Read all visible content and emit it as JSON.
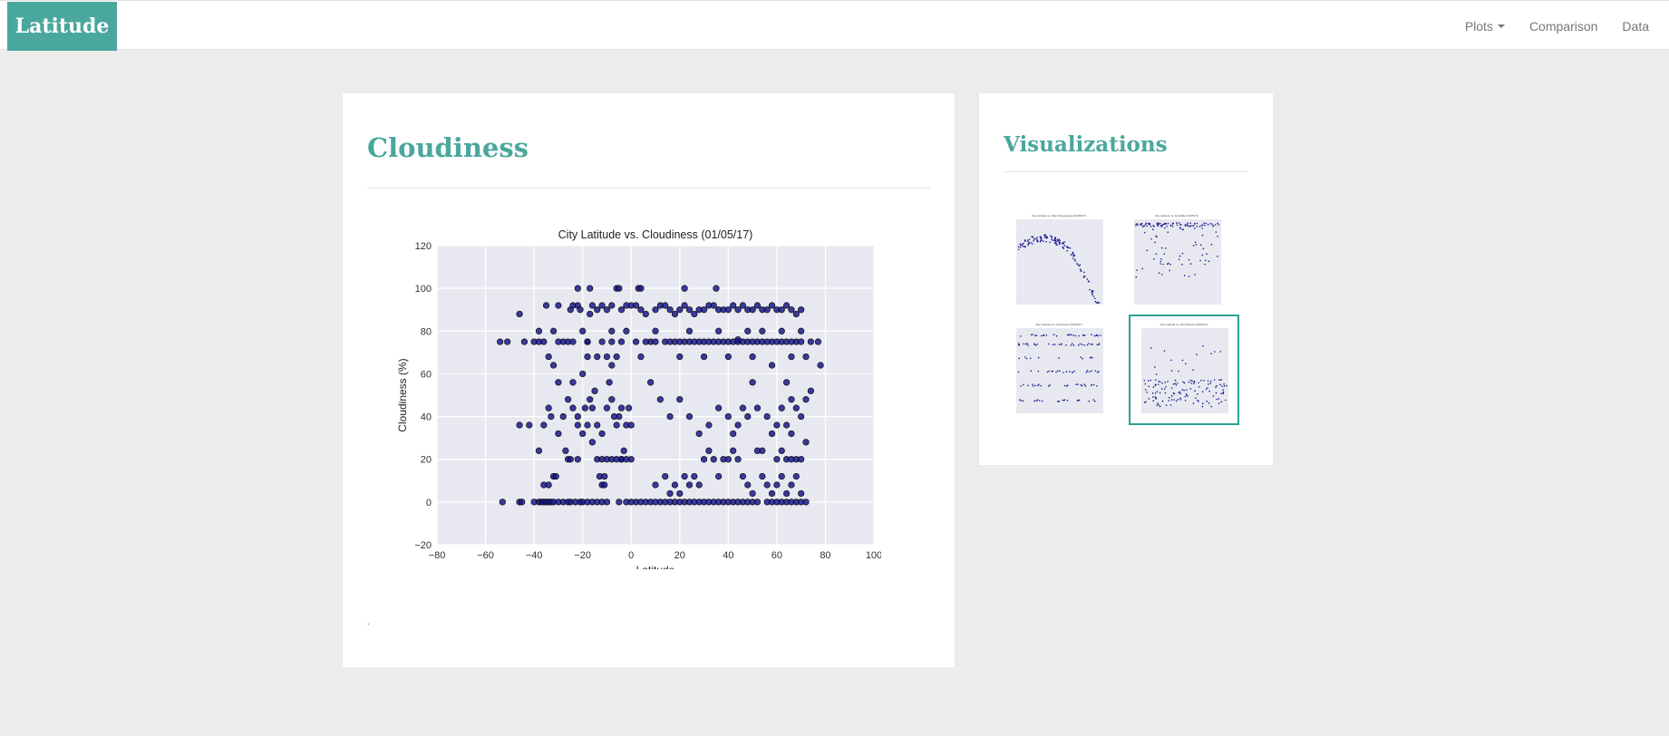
{
  "navbar": {
    "brand": "Latitude",
    "links": [
      {
        "label": "Plots",
        "dropdown": true
      },
      {
        "label": "Comparison",
        "dropdown": false
      },
      {
        "label": "Data",
        "dropdown": false
      }
    ]
  },
  "main": {
    "title": "Cloudiness",
    "footnote": "."
  },
  "sidebar": {
    "title": "Visualizations",
    "thumbnails": [
      {
        "name": "max-temperature",
        "title": "City Latitude vs. Max Temperature (01/05/17)",
        "active": false
      },
      {
        "name": "humidity",
        "title": "City Latitude vs. Humidity (01/05/17)",
        "active": false
      },
      {
        "name": "cloudiness",
        "title": "City Latitude vs. Cloudiness (01/05/17)",
        "active": false
      },
      {
        "name": "wind-speed",
        "title": "City Latitude vs. Wind Speed (01/05/17)",
        "active": true
      }
    ]
  },
  "colors": {
    "accent": "#4aa79e",
    "active_border": "#2f9f95",
    "plot_bg": "#e8e8f1",
    "point": "#1a1a8c"
  },
  "chart_data": {
    "type": "scatter",
    "title": "City Latitude vs. Cloudiness (01/05/17)",
    "xlabel": "Latitude",
    "ylabel": "Cloudiness (%)",
    "xlim": [
      -80,
      100
    ],
    "ylim": [
      -20,
      120
    ],
    "xticks": [
      -80,
      -60,
      -40,
      -20,
      0,
      20,
      40,
      60,
      80,
      100
    ],
    "yticks": [
      -20,
      0,
      20,
      40,
      60,
      80,
      100,
      120
    ],
    "xtick_labels": [
      "−80",
      "−60",
      "−40",
      "−20",
      "0",
      "20",
      "40",
      "60",
      "80",
      "100"
    ],
    "ytick_labels": [
      "−20",
      "0",
      "20",
      "40",
      "60",
      "80",
      "100",
      "120"
    ],
    "grid": true,
    "series": [
      {
        "points": [
          [
            -54,
            75
          ],
          [
            -51,
            75
          ],
          [
            -46,
            88
          ],
          [
            -44,
            75
          ],
          [
            -53,
            0
          ],
          [
            -46,
            0
          ],
          [
            -45,
            0
          ],
          [
            -40,
            0
          ],
          [
            -38,
            0
          ],
          [
            -37,
            0
          ],
          [
            -36,
            0
          ],
          [
            -35,
            0
          ],
          [
            -34,
            0
          ],
          [
            -33,
            0
          ],
          [
            -32,
            0
          ],
          [
            -30,
            0
          ],
          [
            -28,
            0
          ],
          [
            -26,
            0
          ],
          [
            -25,
            0
          ],
          [
            -23,
            0
          ],
          [
            -21,
            0
          ],
          [
            -20,
            0
          ],
          [
            -18,
            0
          ],
          [
            -16,
            0
          ],
          [
            -14,
            0
          ],
          [
            -12,
            0
          ],
          [
            -10,
            0
          ],
          [
            -5,
            0
          ],
          [
            -2,
            0
          ],
          [
            0,
            0
          ],
          [
            2,
            0
          ],
          [
            4,
            0
          ],
          [
            6,
            0
          ],
          [
            8,
            0
          ],
          [
            10,
            0
          ],
          [
            12,
            0
          ],
          [
            14,
            0
          ],
          [
            16,
            0
          ],
          [
            18,
            0
          ],
          [
            20,
            0
          ],
          [
            22,
            0
          ],
          [
            24,
            0
          ],
          [
            26,
            0
          ],
          [
            28,
            0
          ],
          [
            30,
            0
          ],
          [
            32,
            0
          ],
          [
            34,
            0
          ],
          [
            36,
            0
          ],
          [
            38,
            0
          ],
          [
            40,
            0
          ],
          [
            42,
            0
          ],
          [
            44,
            0
          ],
          [
            46,
            0
          ],
          [
            48,
            0
          ],
          [
            50,
            0
          ],
          [
            52,
            0
          ],
          [
            56,
            0
          ],
          [
            58,
            0
          ],
          [
            60,
            0
          ],
          [
            62,
            0
          ],
          [
            64,
            0
          ],
          [
            66,
            0
          ],
          [
            68,
            0
          ],
          [
            70,
            0
          ],
          [
            72,
            0
          ],
          [
            -46,
            36
          ],
          [
            -42,
            36
          ],
          [
            -38,
            24
          ],
          [
            -36,
            8
          ],
          [
            -34,
            8
          ],
          [
            -32,
            12
          ],
          [
            -31,
            12
          ],
          [
            -28,
            40
          ],
          [
            -27,
            24
          ],
          [
            -26,
            20
          ],
          [
            -25,
            20
          ],
          [
            -22,
            20
          ],
          [
            -22,
            36
          ],
          [
            -24,
            44
          ],
          [
            -30,
            32
          ],
          [
            -34,
            44
          ],
          [
            -36,
            36
          ],
          [
            -33,
            40
          ],
          [
            -30,
            56
          ],
          [
            -26,
            48
          ],
          [
            -24,
            56
          ],
          [
            -20,
            60
          ],
          [
            -16,
            44
          ],
          [
            -14,
            36
          ],
          [
            -12,
            32
          ],
          [
            -10,
            44
          ],
          [
            -8,
            48
          ],
          [
            -6,
            36
          ],
          [
            -5,
            40
          ],
          [
            -4,
            44
          ],
          [
            -2,
            36
          ],
          [
            -1,
            44
          ],
          [
            0,
            36
          ],
          [
            0,
            20
          ],
          [
            -4,
            20
          ],
          [
            -3,
            24
          ],
          [
            -7,
            40
          ],
          [
            -9,
            56
          ],
          [
            -8,
            64
          ],
          [
            -10,
            68
          ],
          [
            -6,
            68
          ],
          [
            -12,
            8
          ],
          [
            -11,
            8
          ],
          [
            -13,
            12
          ],
          [
            -11,
            12
          ],
          [
            -14,
            20
          ],
          [
            -12,
            20
          ],
          [
            -10,
            20
          ],
          [
            -8,
            20
          ],
          [
            -6,
            20
          ],
          [
            -4,
            20
          ],
          [
            -2,
            20
          ],
          [
            -16,
            28
          ],
          [
            -18,
            36
          ],
          [
            -20,
            32
          ],
          [
            -22,
            40
          ],
          [
            -19,
            44
          ],
          [
            -17,
            48
          ],
          [
            -15,
            52
          ],
          [
            -35,
            92
          ],
          [
            -32,
            80
          ],
          [
            -30,
            92
          ],
          [
            -28,
            75
          ],
          [
            -26,
            75
          ],
          [
            -25,
            90
          ],
          [
            -24,
            92
          ],
          [
            -22,
            92
          ],
          [
            -21,
            90
          ],
          [
            -20,
            80
          ],
          [
            -18,
            75
          ],
          [
            -17,
            88
          ],
          [
            -16,
            92
          ],
          [
            -14,
            90
          ],
          [
            -12,
            92
          ],
          [
            -10,
            90
          ],
          [
            -8,
            92
          ],
          [
            -6,
            100
          ],
          [
            -4,
            90
          ],
          [
            -2,
            92
          ],
          [
            0,
            92
          ],
          [
            2,
            92
          ],
          [
            3,
            100
          ],
          [
            4,
            90
          ],
          [
            6,
            88
          ],
          [
            8,
            75
          ],
          [
            10,
            90
          ],
          [
            12,
            92
          ],
          [
            14,
            92
          ],
          [
            16,
            90
          ],
          [
            18,
            88
          ],
          [
            20,
            90
          ],
          [
            22,
            92
          ],
          [
            24,
            90
          ],
          [
            26,
            88
          ],
          [
            28,
            90
          ],
          [
            30,
            90
          ],
          [
            32,
            92
          ],
          [
            34,
            92
          ],
          [
            36,
            90
          ],
          [
            38,
            90
          ],
          [
            40,
            90
          ],
          [
            42,
            92
          ],
          [
            44,
            90
          ],
          [
            46,
            92
          ],
          [
            48,
            90
          ],
          [
            50,
            90
          ],
          [
            52,
            92
          ],
          [
            54,
            90
          ],
          [
            56,
            90
          ],
          [
            58,
            92
          ],
          [
            60,
            90
          ],
          [
            62,
            90
          ],
          [
            64,
            92
          ],
          [
            66,
            90
          ],
          [
            68,
            88
          ],
          [
            70,
            90
          ],
          [
            -22,
            100
          ],
          [
            -17,
            100
          ],
          [
            -5,
            100
          ],
          [
            4,
            100
          ],
          [
            22,
            100
          ],
          [
            35,
            100
          ],
          [
            -36,
            75
          ],
          [
            -38,
            75
          ],
          [
            -40,
            75
          ],
          [
            -30,
            75
          ],
          [
            -24,
            75
          ],
          [
            -18,
            75
          ],
          [
            -12,
            75
          ],
          [
            -8,
            75
          ],
          [
            -4,
            75
          ],
          [
            2,
            75
          ],
          [
            6,
            75
          ],
          [
            10,
            75
          ],
          [
            14,
            75
          ],
          [
            16,
            75
          ],
          [
            18,
            75
          ],
          [
            20,
            75
          ],
          [
            22,
            75
          ],
          [
            24,
            75
          ],
          [
            26,
            75
          ],
          [
            28,
            75
          ],
          [
            30,
            75
          ],
          [
            32,
            75
          ],
          [
            34,
            75
          ],
          [
            36,
            75
          ],
          [
            38,
            75
          ],
          [
            40,
            75
          ],
          [
            42,
            75
          ],
          [
            44,
            75
          ],
          [
            46,
            75
          ],
          [
            48,
            75
          ],
          [
            50,
            75
          ],
          [
            52,
            75
          ],
          [
            54,
            75
          ],
          [
            56,
            75
          ],
          [
            58,
            75
          ],
          [
            60,
            75
          ],
          [
            62,
            75
          ],
          [
            64,
            75
          ],
          [
            66,
            75
          ],
          [
            68,
            75
          ],
          [
            70,
            75
          ],
          [
            74,
            75
          ],
          [
            77,
            75
          ],
          [
            -38,
            80
          ],
          [
            -34,
            68
          ],
          [
            -32,
            64
          ],
          [
            -18,
            68
          ],
          [
            -14,
            68
          ],
          [
            -8,
            80
          ],
          [
            -2,
            80
          ],
          [
            4,
            68
          ],
          [
            10,
            80
          ],
          [
            20,
            68
          ],
          [
            24,
            80
          ],
          [
            30,
            68
          ],
          [
            36,
            80
          ],
          [
            40,
            68
          ],
          [
            44,
            76
          ],
          [
            48,
            80
          ],
          [
            50,
            68
          ],
          [
            54,
            80
          ],
          [
            58,
            64
          ],
          [
            62,
            80
          ],
          [
            66,
            68
          ],
          [
            70,
            80
          ],
          [
            72,
            68
          ],
          [
            78,
            64
          ],
          [
            8,
            56
          ],
          [
            12,
            48
          ],
          [
            16,
            40
          ],
          [
            20,
            48
          ],
          [
            24,
            40
          ],
          [
            28,
            32
          ],
          [
            32,
            36
          ],
          [
            36,
            44
          ],
          [
            40,
            40
          ],
          [
            42,
            32
          ],
          [
            44,
            36
          ],
          [
            46,
            44
          ],
          [
            48,
            40
          ],
          [
            50,
            56
          ],
          [
            52,
            44
          ],
          [
            54,
            24
          ],
          [
            56,
            40
          ],
          [
            58,
            32
          ],
          [
            60,
            36
          ],
          [
            62,
            44
          ],
          [
            64,
            56
          ],
          [
            66,
            48
          ],
          [
            68,
            44
          ],
          [
            70,
            40
          ],
          [
            72,
            48
          ],
          [
            74,
            52
          ],
          [
            66,
            32
          ],
          [
            64,
            36
          ],
          [
            60,
            20
          ],
          [
            62,
            24
          ],
          [
            64,
            20
          ],
          [
            66,
            20
          ],
          [
            68,
            20
          ],
          [
            70,
            20
          ],
          [
            72,
            28
          ],
          [
            10,
            8
          ],
          [
            14,
            12
          ],
          [
            16,
            4
          ],
          [
            18,
            8
          ],
          [
            20,
            4
          ],
          [
            22,
            12
          ],
          [
            24,
            8
          ],
          [
            26,
            12
          ],
          [
            28,
            8
          ],
          [
            30,
            20
          ],
          [
            32,
            24
          ],
          [
            34,
            20
          ],
          [
            36,
            12
          ],
          [
            38,
            20
          ],
          [
            40,
            20
          ],
          [
            42,
            24
          ],
          [
            44,
            20
          ],
          [
            46,
            12
          ],
          [
            48,
            8
          ],
          [
            50,
            4
          ],
          [
            52,
            24
          ],
          [
            54,
            12
          ],
          [
            56,
            8
          ],
          [
            58,
            4
          ],
          [
            60,
            8
          ],
          [
            62,
            12
          ],
          [
            64,
            4
          ],
          [
            66,
            8
          ],
          [
            68,
            12
          ],
          [
            70,
            4
          ]
        ]
      }
    ]
  }
}
